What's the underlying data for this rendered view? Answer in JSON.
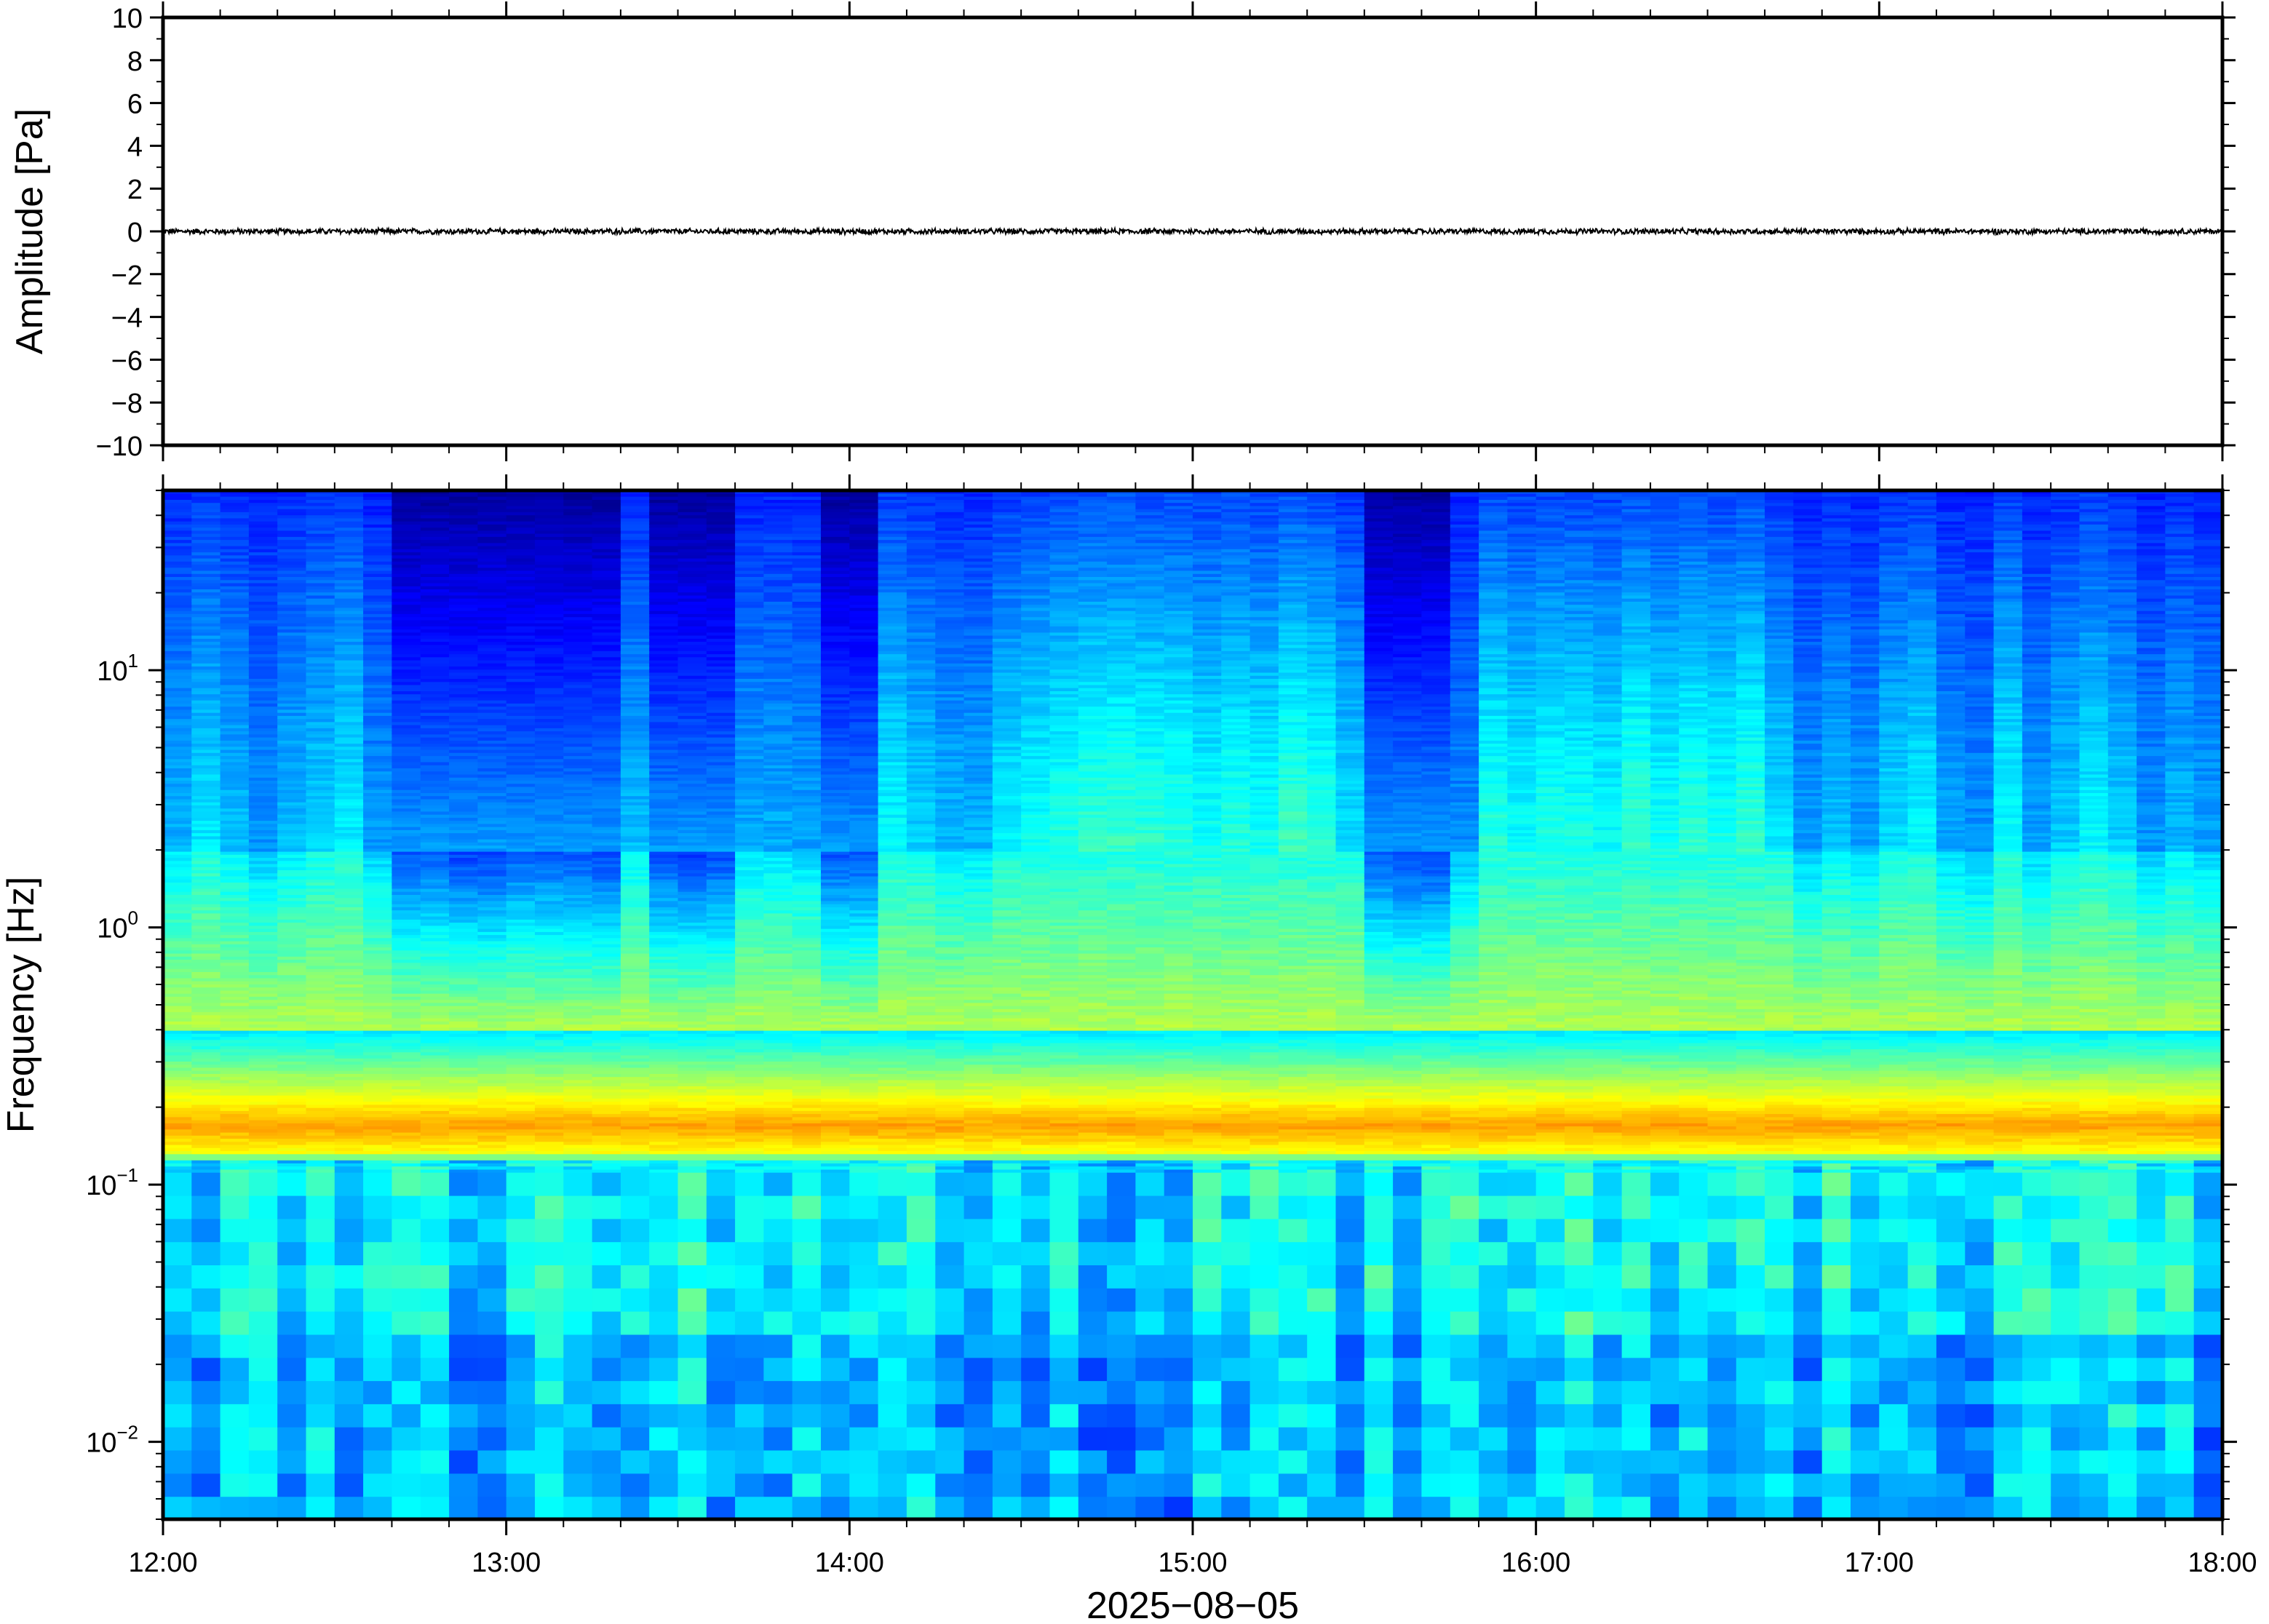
{
  "chart_data": [
    {
      "type": "line",
      "ylabel": "Amplitude [Pa]",
      "ylim": [
        -10,
        10
      ],
      "yticks": [
        "10",
        "8",
        "6",
        "4",
        "2",
        "0",
        "−2",
        "−4",
        "−6",
        "−8",
        "−10"
      ],
      "ytick_values": [
        10,
        8,
        6,
        4,
        2,
        0,
        -2,
        -4,
        -6,
        -8,
        -10
      ],
      "xlim": [
        "12:00",
        "18:00"
      ],
      "series": [
        {
          "values_description_peak_abs": 0.15,
          "mean": 0.0,
          "color": "#000000"
        }
      ],
      "grid": false
    },
    {
      "type": "heatmap",
      "ylabel": "Frequency [Hz]",
      "yscale": "log",
      "ylim": [
        0.005,
        50
      ],
      "yticks": [
        {
          "base": "10",
          "exp": "1",
          "value": 10
        },
        {
          "base": "10",
          "exp": "0",
          "value": 1
        },
        {
          "base": "10",
          "exp": "−1",
          "value": 0.1
        },
        {
          "base": "10",
          "exp": "−2",
          "value": 0.01
        }
      ],
      "xlabel": "2025−08−05",
      "xticks": [
        "12:00",
        "13:00",
        "14:00",
        "15:00",
        "16:00",
        "17:00",
        "18:00"
      ],
      "xlim": [
        "12:00",
        "18:00"
      ],
      "colormap": "jet",
      "features": {
        "microseism_peak_hz": 0.17,
        "quiet_high_freq_windows": [
          [
            "12:40",
            "13:20"
          ],
          [
            "13:25",
            "13:40"
          ],
          [
            "13:55",
            "14:05"
          ],
          [
            "15:30",
            "15:45"
          ]
        ],
        "noisy_high_freq_windows": [
          [
            "14:30",
            "15:25"
          ],
          [
            "15:50",
            "16:40"
          ]
        ]
      },
      "grid": false
    }
  ]
}
